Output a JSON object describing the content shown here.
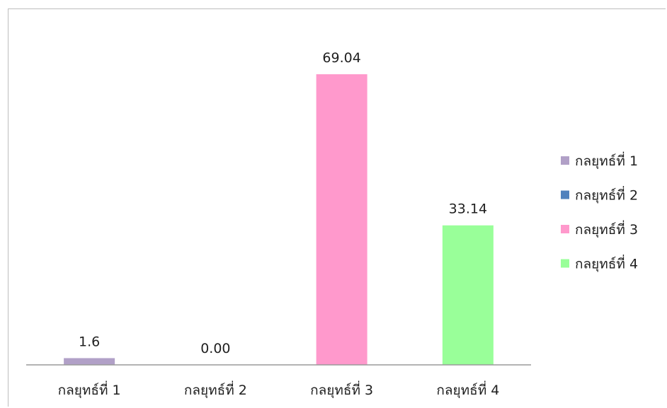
{
  "chart_data": {
    "type": "bar",
    "title": "",
    "xlabel": "",
    "ylabel": "",
    "ylim": [
      0,
      69.04
    ],
    "grid": false,
    "legend_position": "right",
    "categories": [
      "กลยุทธ์ที่ 1",
      "กลยุทธ์ที่ 2",
      "กลยุทธ์ที่ 3",
      "กลยุทธ์ที่ 4"
    ],
    "values": [
      1.6,
      0.0,
      69.04,
      33.14
    ],
    "data_labels": [
      "1.6",
      "0.00",
      "69.04",
      "33.14"
    ],
    "colors": [
      "#b1a0c7",
      "#4f81bd",
      "#ff99cc",
      "#99ff99"
    ],
    "legend": [
      {
        "label": "กลยุทธ์ที่ 1",
        "color": "#b1a0c7"
      },
      {
        "label": "กลยุทธ์ที่ 2",
        "color": "#4f81bd"
      },
      {
        "label": "กลยุทธ์ที่ 3",
        "color": "#ff99cc"
      },
      {
        "label": "กลยุทธ์ที่ 4",
        "color": "#99ff99"
      }
    ]
  }
}
